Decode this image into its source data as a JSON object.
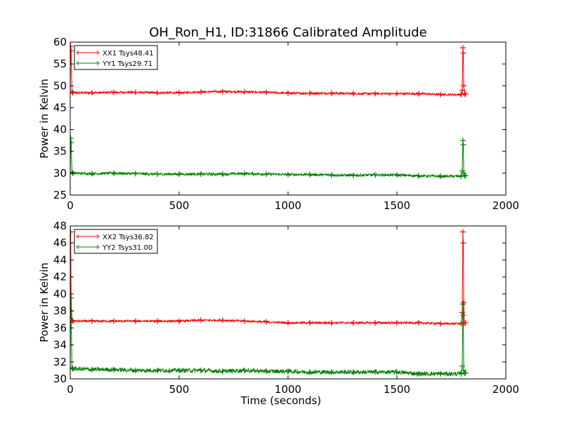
{
  "title": "OH_Ron_H1, ID:31866 Calibrated Amplitude",
  "chart_data": [
    {
      "type": "line",
      "xlabel": "",
      "ylabel": "Power in Kelvin",
      "xlim": [
        0,
        2000
      ],
      "ylim": [
        25,
        60
      ],
      "xticks": [
        "0",
        "500",
        "1000",
        "1500",
        "2000"
      ],
      "yticks": [
        "25",
        "30",
        "35",
        "40",
        "45",
        "50",
        "55",
        "60"
      ],
      "grid": false,
      "legend_position": "top-left",
      "series": [
        {
          "name": "XX1 Tsys48.41",
          "color": "#ff0000",
          "marker": "+",
          "noise": 0.25,
          "x": [
            0,
            2,
            4,
            8,
            12,
            100,
            200,
            300,
            400,
            500,
            600,
            700,
            800,
            900,
            1000,
            1100,
            1200,
            1300,
            1400,
            1500,
            1600,
            1700,
            1795,
            1800,
            1803,
            1805,
            1807,
            1810,
            1815
          ],
          "y": [
            48.5,
            59.0,
            58.0,
            48.6,
            48.4,
            48.4,
            48.5,
            48.5,
            48.4,
            48.4,
            48.6,
            48.7,
            48.6,
            48.5,
            48.3,
            48.3,
            48.3,
            48.2,
            48.2,
            48.2,
            48.2,
            48.0,
            48.0,
            49.0,
            58.7,
            57.5,
            50.0,
            48.2,
            48.1
          ]
        },
        {
          "name": "YY1 Tsys29.71",
          "color": "#008000",
          "marker": "+",
          "noise": 0.3,
          "x": [
            0,
            2,
            4,
            8,
            12,
            100,
            200,
            300,
            400,
            500,
            600,
            700,
            800,
            900,
            1000,
            1100,
            1200,
            1300,
            1400,
            1500,
            1600,
            1700,
            1795,
            1800,
            1803,
            1805,
            1807,
            1810,
            1815
          ],
          "y": [
            30.0,
            38.0,
            37.0,
            30.2,
            30.0,
            29.9,
            30.0,
            29.9,
            29.8,
            29.8,
            29.8,
            29.8,
            29.9,
            29.8,
            29.7,
            29.7,
            29.6,
            29.5,
            29.6,
            29.6,
            29.4,
            29.3,
            29.3,
            30.5,
            37.5,
            36.5,
            30.0,
            29.5,
            29.4
          ]
        }
      ]
    },
    {
      "type": "line",
      "xlabel": "Time (seconds)",
      "ylabel": "Power in Kelvin",
      "xlim": [
        0,
        2000
      ],
      "ylim": [
        30,
        48
      ],
      "xticks": [
        "0",
        "500",
        "1000",
        "1500",
        "2000"
      ],
      "yticks": [
        "30",
        "32",
        "34",
        "36",
        "38",
        "40",
        "42",
        "44",
        "46",
        "48"
      ],
      "grid": false,
      "legend_position": "top-left",
      "series": [
        {
          "name": "XX2 Tsys36.82",
          "color": "#ff0000",
          "marker": "+",
          "noise": 0.12,
          "x": [
            0,
            2,
            4,
            8,
            12,
            100,
            200,
            300,
            400,
            500,
            600,
            700,
            800,
            900,
            1000,
            1100,
            1200,
            1300,
            1400,
            1500,
            1600,
            1700,
            1795,
            1800,
            1803,
            1805,
            1807,
            1810,
            1815
          ],
          "y": [
            36.8,
            47.3,
            39.5,
            36.9,
            36.8,
            36.8,
            36.8,
            36.8,
            36.8,
            36.8,
            36.9,
            36.9,
            36.8,
            36.7,
            36.6,
            36.6,
            36.6,
            36.6,
            36.6,
            36.6,
            36.6,
            36.5,
            36.5,
            37.8,
            47.3,
            46.0,
            39.0,
            36.6,
            36.6
          ]
        },
        {
          "name": "YY2 Tsys31.00",
          "color": "#008000",
          "marker": "+",
          "noise": 0.25,
          "x": [
            0,
            2,
            4,
            8,
            12,
            100,
            200,
            300,
            400,
            500,
            600,
            700,
            800,
            900,
            1000,
            1100,
            1200,
            1300,
            1400,
            1500,
            1600,
            1700,
            1795,
            1800,
            1803,
            1805,
            1807,
            1810,
            1815
          ],
          "y": [
            31.2,
            39.5,
            38.0,
            31.3,
            31.2,
            31.1,
            31.1,
            31.0,
            31.0,
            31.0,
            31.0,
            30.9,
            31.0,
            30.9,
            30.9,
            30.8,
            30.8,
            30.8,
            30.8,
            30.8,
            30.6,
            30.6,
            30.6,
            31.5,
            38.8,
            37.5,
            31.0,
            30.7,
            30.7
          ]
        }
      ]
    }
  ]
}
